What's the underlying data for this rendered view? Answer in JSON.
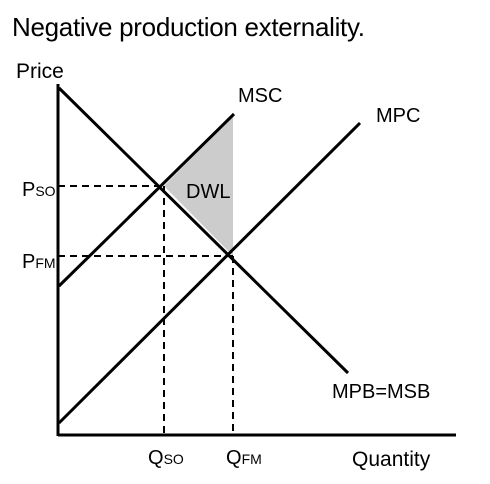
{
  "title": "Negative production externality.",
  "axes": {
    "y_label": "Price",
    "x_label": "Quantity"
  },
  "curves": {
    "msc": "MSC",
    "mpc": "MPC",
    "mpb_msb": "MPB=MSB"
  },
  "points": {
    "p_so": {
      "main": "P",
      "sub": "SO"
    },
    "p_fm": {
      "main": "P",
      "sub": "FM"
    },
    "q_so": {
      "main": "Q",
      "sub": "SO"
    },
    "q_fm": {
      "main": "Q",
      "sub": "FM"
    }
  },
  "area_label": "DWL",
  "colors": {
    "line": "#000000",
    "dwl_fill": "#cccccc"
  }
}
